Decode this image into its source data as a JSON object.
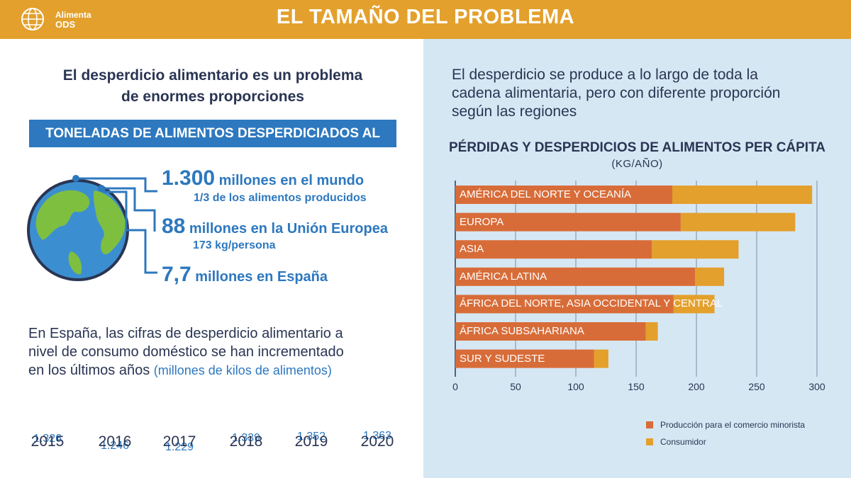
{
  "header": {
    "logo_line1": "Alimenta",
    "logo_line2": "ODS",
    "title": "EL TAMAÑO DEL PROBLEMA"
  },
  "left": {
    "subtitle_line1": "El desperdicio alimentario es un problema",
    "subtitle_line2": "de enormes proporciones",
    "banner": "TONELADAS DE ALIMENTOS DESPERDICIADOS AL AÑO",
    "stats": [
      {
        "big": "1.300",
        "text": " millones en el mundo",
        "sub": "1/3 de los alimentos producidos"
      },
      {
        "big": "88",
        "text": " millones en la Unión Europea",
        "sub": "173 kg/persona"
      },
      {
        "big": "7,7",
        "text": " millones en España",
        "sub": ""
      }
    ],
    "spain_text_line1": "En España, las cifras de desperdicio alimentario a",
    "spain_text_line2": "nivel de consumo doméstico se han incrementado",
    "spain_text_line3": "en los últimos años",
    "spain_text_unit": "(millones de kilos de alimentos)"
  },
  "right": {
    "subtitle_line1": "El desperdicio se produce a lo largo de toda la",
    "subtitle_line2": "cadena alimentaria, pero con diferente proporción",
    "subtitle_line3": "según las regiones"
  },
  "colors": {
    "orange_header": "#e3a02c",
    "blue": "#2d78bf",
    "navy": "#2a3553",
    "production": "#d86c38",
    "consumer": "#e3a02c",
    "right_bg": "#d6e7f4"
  },
  "chart_data": [
    {
      "type": "line",
      "title": "",
      "x": [
        "2015",
        "2016",
        "2017",
        "2018",
        "2019",
        "2020"
      ],
      "values": [
        1326,
        1246,
        1229,
        1339,
        1352,
        1363
      ],
      "value_labels": [
        "1.326",
        "1.246",
        "1.229",
        "1.339",
        "1.352",
        "1.363"
      ],
      "ylabel": "millones de kilos de alimentos"
    },
    {
      "type": "bar",
      "orientation": "horizontal",
      "stacked": true,
      "title": "PÉRDIDAS Y DESPERDICIOS DE ALIMENTOS PER CÁPITA",
      "unit": "(KG/AÑO)",
      "categories": [
        "AMÉRICA DEL NORTE Y OCEANÍA",
        "EUROPA",
        "ASIA",
        "AMÉRICA LATINA",
        "ÁFRICA DEL NORTE, ASIA OCCIDENTAL Y CENTRAL",
        "ÁFRICA SUBSAHARIANA",
        "SUR Y SUDESTE"
      ],
      "series": [
        {
          "name": "Producción para el comercio minorista",
          "values": [
            180,
            187,
            163,
            199,
            181,
            158,
            115
          ]
        },
        {
          "name": "Consumidor",
          "values": [
            116,
            95,
            72,
            24,
            34,
            10,
            12
          ]
        }
      ],
      "xlim": [
        0,
        300
      ],
      "xticks": [
        "0",
        "50",
        "100",
        "150",
        "200",
        "250",
        "300"
      ],
      "legend": "bottom-right"
    }
  ]
}
